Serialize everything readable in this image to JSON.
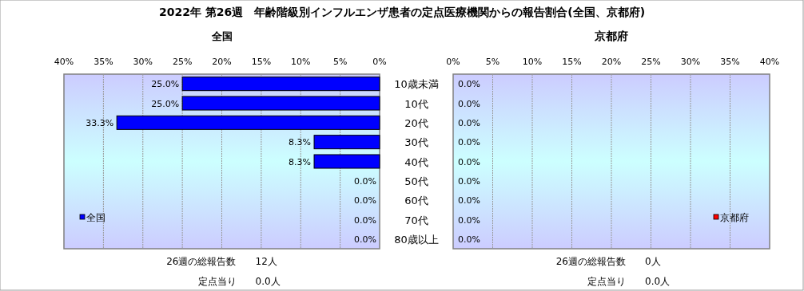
{
  "chart_data": [
    {
      "type": "bar",
      "orientation": "horizontal",
      "title": "2022年 第26週　年齢階級別インフルエンザ患者の定点医療機関からの報告割合(全国、京都府)",
      "subtitle": "全国",
      "categories": [
        "10歳未満",
        "10代",
        "20代",
        "30代",
        "40代",
        "50代",
        "60代",
        "70代",
        "80歳以上"
      ],
      "series": [
        {
          "name": "全国",
          "color": "#0000ff",
          "values": [
            25.0,
            25.0,
            33.3,
            8.3,
            8.3,
            0.0,
            0.0,
            0.0,
            0.0
          ],
          "value_labels": [
            "25.0%",
            "25.0%",
            "33.3%",
            "8.3%",
            "8.3%",
            "0.0%",
            "0.0%",
            "0.0%",
            "0.0%"
          ]
        }
      ],
      "xlim": [
        40,
        0
      ],
      "xticks": [
        {
          "value": 40,
          "label": "40%"
        },
        {
          "value": 35,
          "label": "35%"
        },
        {
          "value": 30,
          "label": "30%"
        },
        {
          "value": 25,
          "label": "25%"
        },
        {
          "value": 20,
          "label": "20%"
        },
        {
          "value": 15,
          "label": "15%"
        },
        {
          "value": 10,
          "label": "10%"
        },
        {
          "value": 5,
          "label": "5%"
        },
        {
          "value": 0,
          "label": "0%"
        }
      ],
      "grid": "x",
      "legend": "bottom left",
      "annotations": [
        "26週の総報告数",
        "12人",
        "定点当り",
        "0.0人"
      ]
    },
    {
      "type": "bar",
      "orientation": "horizontal",
      "title": "京都府",
      "categories": [
        null,
        null,
        null,
        null,
        null,
        null,
        null,
        null,
        null
      ],
      "series": [
        {
          "name": "京都府",
          "color": "#ff0000",
          "values": [
            0.0,
            0.0,
            0.0,
            0.0,
            0.0,
            0.0,
            0.0,
            0.0,
            0.0
          ],
          "value_labels": [
            "0.0%",
            "0.0%",
            "0.0%",
            "0.0%",
            "0.0%",
            "0.0%",
            "0.0%",
            "0.0%",
            "0.0%"
          ]
        }
      ],
      "xlim": [
        0,
        40
      ],
      "xticks": [
        {
          "value": 0,
          "label": "0%"
        },
        {
          "value": 5,
          "label": "5%"
        },
        {
          "value": 10,
          "label": "10%"
        },
        {
          "value": 15,
          "label": "15%"
        },
        {
          "value": 20,
          "label": "20%"
        },
        {
          "value": 25,
          "label": "25%"
        },
        {
          "value": 30,
          "label": "30%"
        },
        {
          "value": 35,
          "label": "35%"
        },
        {
          "value": 40,
          "label": "40%"
        }
      ],
      "grid": "x",
      "legend": "bottom right",
      "tick_labels": "x",
      "annotations": [
        "26週の総報告数",
        "0人",
        "定点当り",
        "0.0人"
      ]
    }
  ]
}
